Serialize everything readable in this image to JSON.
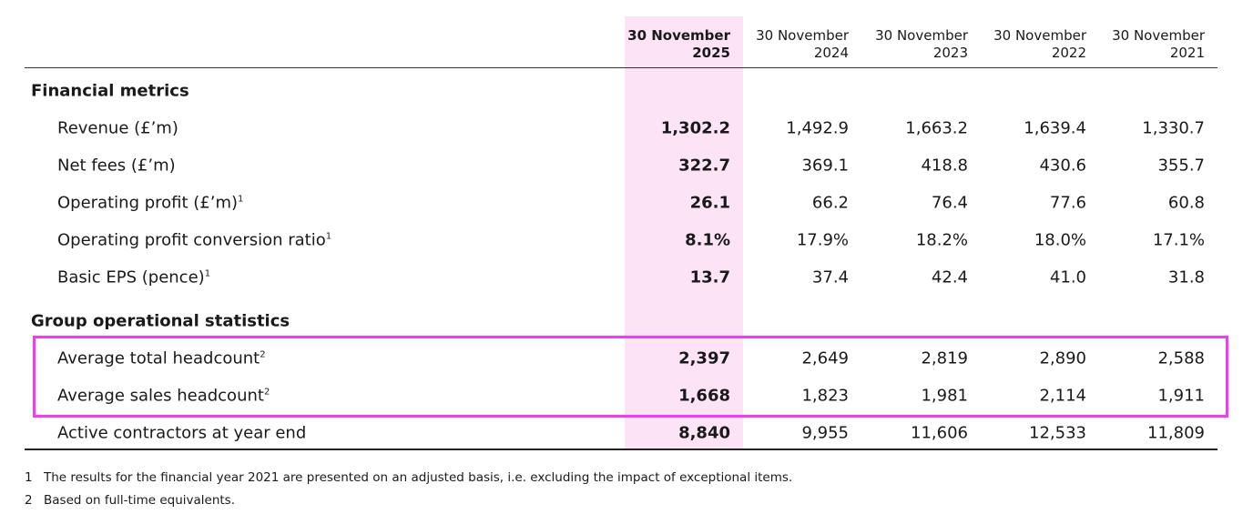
{
  "table": {
    "columns": [
      {
        "line1": "30 November",
        "line2": "2025"
      },
      {
        "line1": "30 November",
        "line2": "2024"
      },
      {
        "line1": "30 November",
        "line2": "2023"
      },
      {
        "line1": "30 November",
        "line2": "2022"
      },
      {
        "line1": "30 November",
        "line2": "2021"
      }
    ],
    "sections": [
      {
        "title": "Financial metrics",
        "rows": [
          {
            "label": "Revenue (£’m)",
            "values": [
              "1,302.2",
              "1,492.9",
              "1,663.2",
              "1,639.4",
              "1,330.7"
            ]
          },
          {
            "label": "Net fees (£’m)",
            "values": [
              "322.7",
              "369.1",
              "418.8",
              "430.6",
              "355.7"
            ]
          },
          {
            "label": "Operating profit (£’m)",
            "note": "1",
            "values": [
              "26.1",
              "66.2",
              "76.4",
              "77.6",
              "60.8"
            ]
          },
          {
            "label": "Operating profit conversion ratio",
            "note": "1",
            "values": [
              "8.1%",
              "17.9%",
              "18.2%",
              "18.0%",
              "17.1%"
            ]
          },
          {
            "label": "Basic EPS (pence)",
            "note": "1",
            "values": [
              "13.7",
              "37.4",
              "42.4",
              "41.0",
              "31.8"
            ]
          }
        ]
      },
      {
        "title": "Group operational statistics",
        "rows": [
          {
            "label": "Average total headcount",
            "note": "2",
            "values": [
              "2,397",
              "2,649",
              "2,819",
              "2,890",
              "2,588"
            ]
          },
          {
            "label": "Average sales headcount",
            "note": "2",
            "values": [
              "1,668",
              "1,823",
              "1,981",
              "2,114",
              "1,911"
            ]
          },
          {
            "label": "Active contractors at year end",
            "values": [
              "8,840",
              "9,955",
              "11,606",
              "12,533",
              "11,809"
            ]
          }
        ]
      }
    ]
  },
  "footnotes": [
    {
      "number": "1",
      "text": "The results for the financial year 2021 are presented on an adjusted basis, i.e. excluding the impact of exceptional items."
    },
    {
      "number": "2",
      "text": "Based on full-time equivalents."
    }
  ]
}
